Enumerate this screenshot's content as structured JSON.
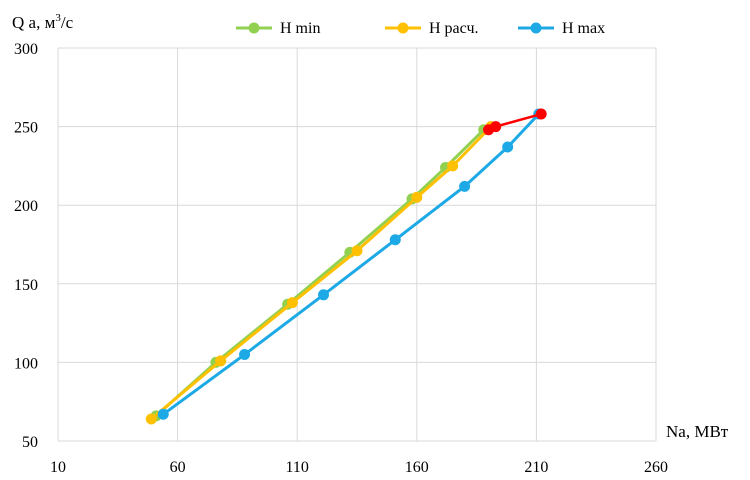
{
  "chart_data": {
    "type": "line",
    "title": "",
    "xlabel": "Na, МВт",
    "ylabel_main": "Q а, м",
    "ylabel_sup": "3",
    "ylabel_tail": "/с",
    "xlim": [
      10,
      260
    ],
    "ylim": [
      50,
      300
    ],
    "xticks": [
      10,
      60,
      110,
      160,
      210,
      260
    ],
    "yticks": [
      50,
      100,
      150,
      200,
      250,
      300
    ],
    "grid": true,
    "legend_position": "top",
    "series": [
      {
        "name": "H min",
        "color": "#92D050",
        "x": [
          51,
          76,
          106,
          132,
          158,
          172,
          188
        ],
        "y": [
          66,
          100,
          137,
          170,
          204,
          224,
          248
        ]
      },
      {
        "name": "H расч.",
        "color": "#FFC000",
        "x": [
          49,
          78,
          108,
          135,
          160,
          175,
          191
        ],
        "y": [
          64,
          101,
          138,
          171,
          205,
          225,
          250
        ]
      },
      {
        "name": "H max",
        "color": "#1CA9E6",
        "x": [
          54,
          88,
          121,
          151,
          180,
          198,
          211
        ],
        "y": [
          67,
          105,
          143,
          178,
          212,
          237,
          258
        ]
      }
    ],
    "highlight": {
      "color": "#FF0000",
      "x": [
        190,
        193,
        212
      ],
      "y": [
        248,
        250,
        258
      ]
    }
  }
}
